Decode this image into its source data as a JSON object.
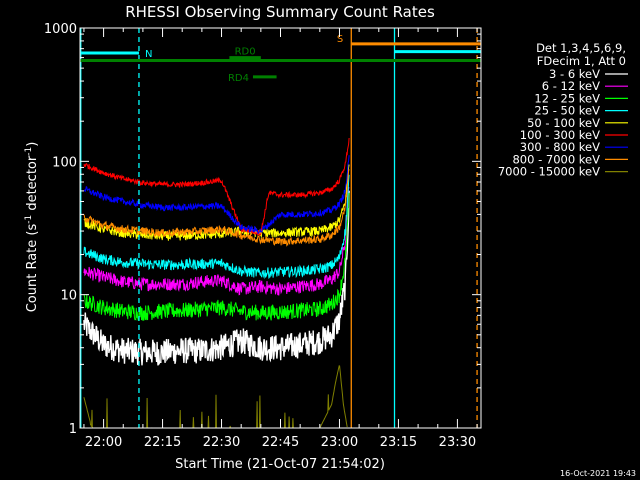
{
  "chart_data": {
    "type": "line",
    "title": "RHESSI Observing Summary Count Rates",
    "xlabel": "Start Time (21-Oct-07 21:54:02)",
    "ylabel_main": "Count Rate (s",
    "ylabel_sup1": "-1",
    "ylabel_mid": " detector",
    "ylabel_sup2": "-1",
    "ylabel_end": ")",
    "yscale": "log",
    "ylim": [
      1,
      1000
    ],
    "xlim_minutes": [
      -6,
      96
    ],
    "x_tick_labels": [
      {
        "label": "22:00",
        "minutes": 0
      },
      {
        "label": "22:15",
        "minutes": 15
      },
      {
        "label": "22:30",
        "minutes": 30
      },
      {
        "label": "22:45",
        "minutes": 45
      },
      {
        "label": "23:00",
        "minutes": 60
      },
      {
        "label": "23:15",
        "minutes": 75
      },
      {
        "label": "23:30",
        "minutes": 90
      }
    ],
    "y_tick_labels": [
      {
        "label": "1",
        "value": 1
      },
      {
        "label": "10",
        "value": 10
      },
      {
        "label": "100",
        "value": 100
      },
      {
        "label": "1000",
        "value": 1000
      }
    ],
    "legend_header": [
      "Det 1,3,4,5,6,9,",
      "FDecim 1, Att 0"
    ],
    "legend_position": "right",
    "series": [
      {
        "name": "3 - 6 keV",
        "color": "#ffffff",
        "x": [
          -5,
          0,
          5,
          10,
          15,
          20,
          25,
          30,
          35,
          40,
          45,
          50,
          55,
          58,
          60,
          61.5,
          62.5
        ],
        "y": [
          6,
          4.2,
          3.8,
          3.7,
          3.7,
          3.8,
          3.8,
          4,
          4.5,
          4,
          4,
          4.2,
          4.5,
          5,
          6.5,
          12,
          55
        ]
      },
      {
        "name": "6 - 12 keV",
        "color": "#ff00ff",
        "x": [
          -5,
          0,
          5,
          10,
          15,
          20,
          25,
          30,
          35,
          40,
          45,
          50,
          55,
          58,
          60,
          61.5,
          62.5
        ],
        "y": [
          15,
          13.5,
          12.5,
          12,
          12,
          12,
          12.5,
          12.8,
          11,
          11.5,
          11,
          11.5,
          12,
          13,
          15,
          25,
          70
        ]
      },
      {
        "name": "12 - 25 keV",
        "color": "#00ff00",
        "x": [
          -5,
          0,
          5,
          10,
          15,
          20,
          25,
          30,
          35,
          40,
          45,
          50,
          55,
          58,
          60,
          61.5,
          62.5
        ],
        "y": [
          9,
          8,
          7.5,
          7.3,
          7.5,
          7.6,
          7.8,
          8,
          7.5,
          7.3,
          7.4,
          7.6,
          7.8,
          8.5,
          10,
          18,
          55
        ]
      },
      {
        "name": "25 - 50 keV",
        "color": "#00ffff",
        "x": [
          -5,
          0,
          5,
          10,
          15,
          20,
          25,
          30,
          35,
          40,
          45,
          50,
          55,
          58,
          60,
          61.5,
          62.5
        ],
        "y": [
          21,
          18.5,
          17.5,
          17,
          16.8,
          16.8,
          17,
          17.2,
          15,
          14.5,
          14.8,
          15,
          15.5,
          16.5,
          19,
          30,
          80
        ]
      },
      {
        "name": "50 - 100 keV",
        "color": "#ffff00",
        "x": [
          -5,
          0,
          5,
          10,
          15,
          20,
          25,
          30,
          35,
          40,
          45,
          50,
          55,
          58,
          60,
          61.5,
          62.5
        ],
        "y": [
          35,
          31,
          29,
          28,
          27.5,
          27.5,
          28,
          28.5,
          30,
          29,
          29,
          29.5,
          30,
          32,
          36,
          50,
          100
        ]
      },
      {
        "name": "100 - 300 keV",
        "color": "#ff0000",
        "x": [
          -5,
          0,
          5,
          10,
          15,
          20,
          25,
          30,
          35,
          40,
          42,
          45,
          50,
          55,
          58,
          60,
          61.5,
          62.5
        ],
        "y": [
          95,
          82,
          74,
          69,
          67,
          67,
          69,
          72,
          31,
          29,
          58,
          56,
          56,
          58,
          62,
          72,
          95,
          150
        ]
      },
      {
        "name": "300 - 800 keV",
        "color": "#0000ff",
        "x": [
          -5,
          0,
          5,
          10,
          15,
          20,
          25,
          30,
          35,
          40,
          45,
          50,
          55,
          58,
          60,
          61.5,
          62.5
        ],
        "y": [
          62,
          54,
          50,
          47,
          45,
          45,
          46,
          46,
          32,
          30,
          40,
          40,
          41,
          43,
          48,
          60,
          110
        ]
      },
      {
        "name": "800 - 7000 keV",
        "color": "#ff8c00",
        "x": [
          -5,
          0,
          5,
          10,
          15,
          20,
          25,
          30,
          35,
          40,
          45,
          50,
          55,
          58,
          60,
          61.5,
          62.5
        ],
        "y": [
          38,
          33,
          31,
          30,
          29,
          29.5,
          30,
          31,
          28,
          26,
          25,
          25.5,
          26,
          28,
          32,
          45,
          90
        ]
      },
      {
        "name": "7000 - 15000 keV",
        "color": "#808000",
        "x": [
          -5,
          -3,
          0,
          10,
          20,
          30,
          40,
          50,
          55,
          58,
          59,
          60,
          61,
          62
        ],
        "y": [
          1.7,
          1,
          1,
          1,
          1,
          1,
          1,
          1,
          1,
          1.5,
          2.2,
          3,
          1.5,
          1
        ]
      }
    ],
    "flags": [
      {
        "label": "N",
        "color": "#00ffff",
        "x_start": -6,
        "x_end": 9,
        "y": 650
      },
      {
        "label": "RD0",
        "color": "#008000",
        "x_start": 32,
        "x_end": 40,
        "y": 600
      },
      {
        "label": "RD4",
        "color": "#008000",
        "x_start": 38,
        "x_end": 44,
        "y": 430
      },
      {
        "label": "S",
        "color": "#ff8c00",
        "x_start": 63,
        "x_end": 96,
        "y": 760
      }
    ],
    "flag_lines": [
      {
        "label": "",
        "color": "#008000",
        "x_start": -6,
        "x_end": 96,
        "y": 570
      },
      {
        "label": "",
        "color": "#00ffff",
        "x_start": 74,
        "x_end": 96,
        "y": 665
      }
    ],
    "vertical_markers": [
      {
        "color": "#00ffff",
        "x": -5.8,
        "dashed": false
      },
      {
        "color": "#00ffff",
        "x": 9,
        "dashed": true
      },
      {
        "color": "#ff8c00",
        "x": 63,
        "dashed": false
      },
      {
        "color": "#00ffff",
        "x": 74,
        "dashed": false
      },
      {
        "color": "#ff8c00",
        "x": 95,
        "dashed": true
      }
    ]
  },
  "footer_timestamp": "16-Oct-2021 19:43"
}
